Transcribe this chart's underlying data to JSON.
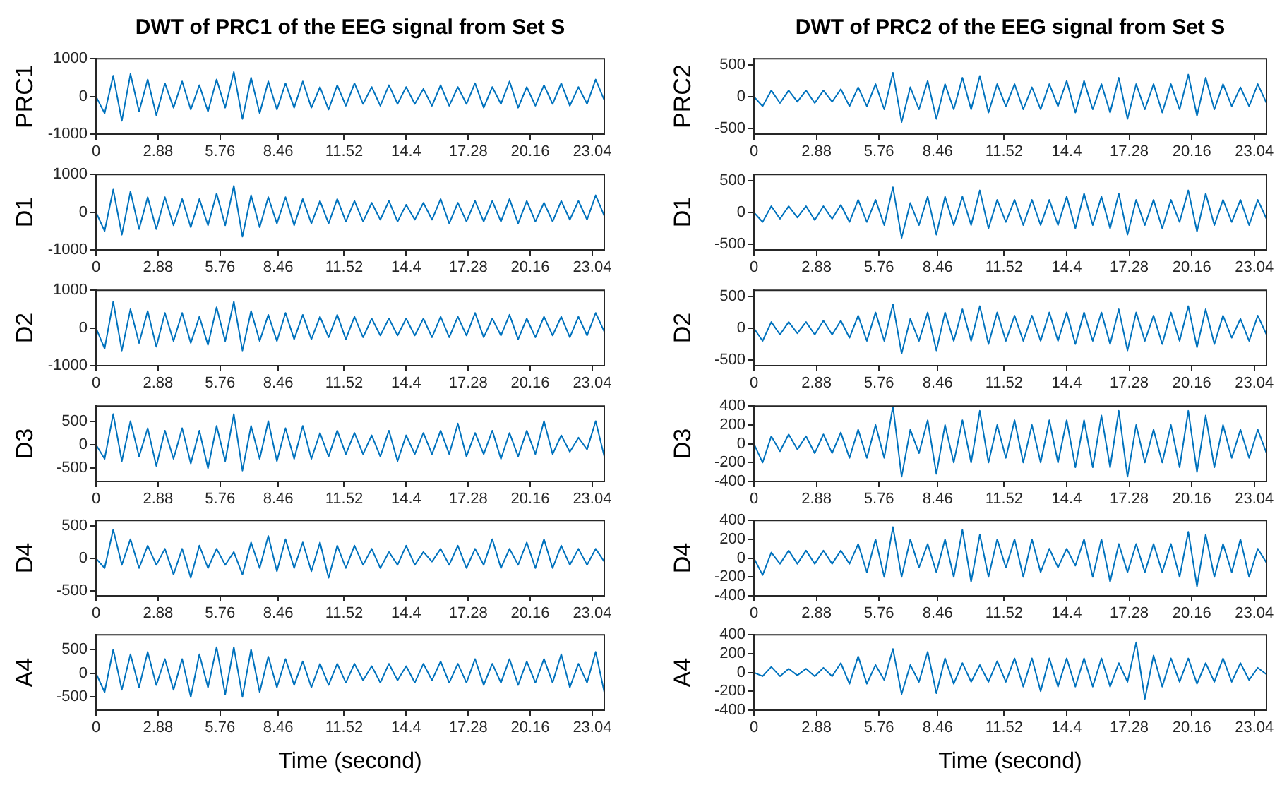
{
  "chart_data": [
    {
      "type": "line",
      "title": "DWT of PRC1 of the EEG signal from Set S",
      "ylabel": "PRC1",
      "color": "#0072bd",
      "xlim": [
        0,
        23.6
      ],
      "ylim": [
        -1000,
        1000
      ],
      "yticks": [
        -1000,
        0,
        1000
      ],
      "xticks": [
        0,
        2.88,
        5.76,
        8.46,
        11.52,
        14.4,
        17.28,
        20.16,
        23.04
      ],
      "grid": false,
      "legend": false,
      "marker": "none",
      "x": [
        0,
        0.4,
        0.8,
        1.2,
        1.6,
        2,
        2.4,
        2.8,
        3.2,
        3.6,
        4,
        4.4,
        4.8,
        5.2,
        5.6,
        6,
        6.4,
        6.8,
        7.2,
        7.6,
        8,
        8.4,
        8.8,
        9.2,
        9.6,
        10,
        10.4,
        10.8,
        11.2,
        11.6,
        12,
        12.4,
        12.8,
        13.2,
        13.6,
        14,
        14.4,
        14.8,
        15.2,
        15.6,
        16,
        16.4,
        16.8,
        17.2,
        17.6,
        18,
        18.4,
        18.8,
        19.2,
        19.6,
        20,
        20.4,
        20.8,
        21.2,
        21.6,
        22,
        22.4,
        22.8,
        23.2,
        23.6
      ],
      "values": [
        0,
        -450,
        550,
        -650,
        600,
        -400,
        450,
        -500,
        350,
        -300,
        400,
        -350,
        300,
        -400,
        450,
        -300,
        650,
        -600,
        500,
        -450,
        400,
        -350,
        350,
        -300,
        400,
        -300,
        250,
        -350,
        300,
        -250,
        350,
        -200,
        250,
        -250,
        300,
        -200,
        250,
        -200,
        200,
        -250,
        300,
        -250,
        250,
        -200,
        350,
        -300,
        250,
        -200,
        400,
        -300,
        250,
        -250,
        300,
        -200,
        350,
        -250,
        250,
        -200,
        450,
        -100
      ]
    },
    {
      "type": "line",
      "ylabel": "D1",
      "color": "#0072bd",
      "xlim": [
        0,
        23.6
      ],
      "ylim": [
        -1000,
        1000
      ],
      "yticks": [
        -1000,
        0,
        1000
      ],
      "xticks": [
        0,
        2.88,
        5.76,
        8.46,
        11.52,
        14.4,
        17.28,
        20.16,
        23.04
      ],
      "grid": false,
      "legend": false,
      "marker": "none",
      "x": [
        0,
        0.4,
        0.8,
        1.2,
        1.6,
        2,
        2.4,
        2.8,
        3.2,
        3.6,
        4,
        4.4,
        4.8,
        5.2,
        5.6,
        6,
        6.4,
        6.8,
        7.2,
        7.6,
        8,
        8.4,
        8.8,
        9.2,
        9.6,
        10,
        10.4,
        10.8,
        11.2,
        11.6,
        12,
        12.4,
        12.8,
        13.2,
        13.6,
        14,
        14.4,
        14.8,
        15.2,
        15.6,
        16,
        16.4,
        16.8,
        17.2,
        17.6,
        18,
        18.4,
        18.8,
        19.2,
        19.6,
        20,
        20.4,
        20.8,
        21.2,
        21.6,
        22,
        22.4,
        22.8,
        23.2,
        23.6
      ],
      "values": [
        0,
        -500,
        600,
        -600,
        550,
        -450,
        400,
        -450,
        400,
        -350,
        350,
        -400,
        350,
        -350,
        500,
        -350,
        700,
        -650,
        450,
        -400,
        400,
        -300,
        400,
        -350,
        350,
        -300,
        300,
        -300,
        350,
        -250,
        300,
        -250,
        250,
        -200,
        300,
        -250,
        200,
        -200,
        250,
        -200,
        350,
        -300,
        250,
        -250,
        300,
        -250,
        300,
        -250,
        350,
        -300,
        300,
        -250,
        250,
        -250,
        300,
        -200,
        300,
        -200,
        450,
        -100
      ]
    },
    {
      "type": "line",
      "ylabel": "D2",
      "color": "#0072bd",
      "xlim": [
        0,
        23.6
      ],
      "ylim": [
        -1000,
        1000
      ],
      "yticks": [
        -1000,
        0,
        1000
      ],
      "xticks": [
        0,
        2.88,
        5.76,
        8.46,
        11.52,
        14.4,
        17.28,
        20.16,
        23.04
      ],
      "grid": false,
      "legend": false,
      "marker": "none",
      "x": [
        0,
        0.4,
        0.8,
        1.2,
        1.6,
        2,
        2.4,
        2.8,
        3.2,
        3.6,
        4,
        4.4,
        4.8,
        5.2,
        5.6,
        6,
        6.4,
        6.8,
        7.2,
        7.6,
        8,
        8.4,
        8.8,
        9.2,
        9.6,
        10,
        10.4,
        10.8,
        11.2,
        11.6,
        12,
        12.4,
        12.8,
        13.2,
        13.6,
        14,
        14.4,
        14.8,
        15.2,
        15.6,
        16,
        16.4,
        16.8,
        17.2,
        17.6,
        18,
        18.4,
        18.8,
        19.2,
        19.6,
        20,
        20.4,
        20.8,
        21.2,
        21.6,
        22,
        22.4,
        22.8,
        23.2,
        23.6
      ],
      "values": [
        0,
        -550,
        700,
        -600,
        500,
        -400,
        450,
        -500,
        400,
        -350,
        400,
        -400,
        300,
        -450,
        550,
        -350,
        700,
        -600,
        450,
        -350,
        350,
        -350,
        400,
        -300,
        350,
        -300,
        300,
        -250,
        350,
        -300,
        300,
        -250,
        250,
        -200,
        250,
        -200,
        250,
        -200,
        250,
        -250,
        300,
        -250,
        300,
        -200,
        400,
        -250,
        250,
        -200,
        350,
        -300,
        250,
        -250,
        300,
        -200,
        300,
        -250,
        300,
        -200,
        400,
        -100
      ]
    },
    {
      "type": "line",
      "ylabel": "D3",
      "color": "#0072bd",
      "xlim": [
        0,
        23.6
      ],
      "ylim": [
        -780,
        820
      ],
      "yticks": [
        -500,
        0,
        500
      ],
      "xticks": [
        0,
        2.88,
        5.76,
        8.46,
        11.52,
        14.4,
        17.28,
        20.16,
        23.04
      ],
      "grid": false,
      "legend": false,
      "marker": "none",
      "x": [
        0,
        0.4,
        0.8,
        1.2,
        1.6,
        2,
        2.4,
        2.8,
        3.2,
        3.6,
        4,
        4.4,
        4.8,
        5.2,
        5.6,
        6,
        6.4,
        6.8,
        7.2,
        7.6,
        8,
        8.4,
        8.8,
        9.2,
        9.6,
        10,
        10.4,
        10.8,
        11.2,
        11.6,
        12,
        12.4,
        12.8,
        13.2,
        13.6,
        14,
        14.4,
        14.8,
        15.2,
        15.6,
        16,
        16.4,
        16.8,
        17.2,
        17.6,
        18,
        18.4,
        18.8,
        19.2,
        19.6,
        20,
        20.4,
        20.8,
        21.2,
        21.6,
        22,
        22.4,
        22.8,
        23.2,
        23.6
      ],
      "values": [
        0,
        -300,
        650,
        -350,
        500,
        -250,
        350,
        -450,
        300,
        -300,
        350,
        -400,
        300,
        -500,
        400,
        -350,
        650,
        -550,
        400,
        -300,
        500,
        -350,
        350,
        -300,
        400,
        -300,
        250,
        -250,
        300,
        -200,
        250,
        -200,
        200,
        -250,
        300,
        -350,
        200,
        -200,
        250,
        -200,
        300,
        -200,
        450,
        -250,
        250,
        -200,
        300,
        -300,
        250,
        -250,
        300,
        -200,
        500,
        -200,
        200,
        -150,
        150,
        -100,
        500,
        -250
      ]
    },
    {
      "type": "line",
      "ylabel": "D4",
      "color": "#0072bd",
      "xlim": [
        0,
        23.6
      ],
      "ylim": [
        -580,
        590
      ],
      "yticks": [
        -500,
        0,
        500
      ],
      "xticks": [
        0,
        2.88,
        5.76,
        8.46,
        11.52,
        14.4,
        17.28,
        20.16,
        23.04
      ],
      "grid": false,
      "legend": false,
      "marker": "none",
      "x": [
        0,
        0.4,
        0.8,
        1.2,
        1.6,
        2,
        2.4,
        2.8,
        3.2,
        3.6,
        4,
        4.4,
        4.8,
        5.2,
        5.6,
        6,
        6.4,
        6.8,
        7.2,
        7.6,
        8,
        8.4,
        8.8,
        9.2,
        9.6,
        10,
        10.4,
        10.8,
        11.2,
        11.6,
        12,
        12.4,
        12.8,
        13.2,
        13.6,
        14,
        14.4,
        14.8,
        15.2,
        15.6,
        16,
        16.4,
        16.8,
        17.2,
        17.6,
        18,
        18.4,
        18.8,
        19.2,
        19.6,
        20,
        20.4,
        20.8,
        21.2,
        21.6,
        22,
        22.4,
        22.8,
        23.2,
        23.6
      ],
      "values": [
        0,
        -150,
        450,
        -100,
        300,
        -150,
        200,
        -100,
        150,
        -250,
        150,
        -300,
        200,
        -150,
        150,
        -100,
        100,
        -250,
        250,
        -150,
        350,
        -200,
        300,
        -150,
        250,
        -200,
        250,
        -300,
        200,
        -150,
        200,
        -100,
        150,
        -150,
        100,
        -100,
        200,
        -100,
        100,
        -50,
        150,
        -100,
        200,
        -150,
        150,
        -100,
        300,
        -150,
        150,
        -100,
        250,
        -150,
        300,
        -150,
        200,
        -100,
        150,
        -100,
        150,
        -50
      ]
    },
    {
      "type": "line",
      "ylabel": "A4",
      "xlabel": "Time (second)",
      "color": "#0072bd",
      "xlim": [
        0,
        23.6
      ],
      "ylim": [
        -780,
        810
      ],
      "yticks": [
        -500,
        0,
        500
      ],
      "xticks": [
        0,
        2.88,
        5.76,
        8.46,
        11.52,
        14.4,
        17.28,
        20.16,
        23.04
      ],
      "grid": false,
      "legend": false,
      "marker": "none",
      "x": [
        0,
        0.4,
        0.8,
        1.2,
        1.6,
        2,
        2.4,
        2.8,
        3.2,
        3.6,
        4,
        4.4,
        4.8,
        5.2,
        5.6,
        6,
        6.4,
        6.8,
        7.2,
        7.6,
        8,
        8.4,
        8.8,
        9.2,
        9.6,
        10,
        10.4,
        10.8,
        11.2,
        11.6,
        12,
        12.4,
        12.8,
        13.2,
        13.6,
        14,
        14.4,
        14.8,
        15.2,
        15.6,
        16,
        16.4,
        16.8,
        17.2,
        17.6,
        18,
        18.4,
        18.8,
        19.2,
        19.6,
        20,
        20.4,
        20.8,
        21.2,
        21.6,
        22,
        22.4,
        22.8,
        23.2,
        23.6
      ],
      "values": [
        0,
        -400,
        500,
        -350,
        400,
        -300,
        450,
        -250,
        300,
        -350,
        300,
        -500,
        400,
        -300,
        550,
        -450,
        550,
        -500,
        500,
        -400,
        350,
        -300,
        300,
        -250,
        250,
        -300,
        200,
        -250,
        200,
        -200,
        200,
        -150,
        150,
        -200,
        200,
        -150,
        150,
        -200,
        200,
        -150,
        250,
        -200,
        200,
        -200,
        300,
        -250,
        200,
        -200,
        300,
        -250,
        250,
        -200,
        300,
        -200,
        400,
        -300,
        200,
        -200,
        450,
        -400
      ]
    },
    {
      "type": "line",
      "title": "DWT of PRC2 of the EEG signal from Set S",
      "ylabel": "PRC2",
      "color": "#0072bd",
      "xlim": [
        0,
        23.6
      ],
      "ylim": [
        -590,
        600
      ],
      "yticks": [
        -500,
        0,
        500
      ],
      "xticks": [
        0,
        2.88,
        5.76,
        8.46,
        11.52,
        14.4,
        17.28,
        20.16,
        23.04
      ],
      "grid": false,
      "legend": false,
      "marker": "none",
      "x": [
        0,
        0.4,
        0.8,
        1.2,
        1.6,
        2,
        2.4,
        2.8,
        3.2,
        3.6,
        4,
        4.4,
        4.8,
        5.2,
        5.6,
        6,
        6.4,
        6.8,
        7.2,
        7.6,
        8,
        8.4,
        8.8,
        9.2,
        9.6,
        10,
        10.4,
        10.8,
        11.2,
        11.6,
        12,
        12.4,
        12.8,
        13.2,
        13.6,
        14,
        14.4,
        14.8,
        15.2,
        15.6,
        16,
        16.4,
        16.8,
        17.2,
        17.6,
        18,
        18.4,
        18.8,
        19.2,
        19.6,
        20,
        20.4,
        20.8,
        21.2,
        21.6,
        22,
        22.4,
        22.8,
        23.2,
        23.6
      ],
      "values": [
        0,
        -150,
        100,
        -100,
        100,
        -80,
        100,
        -100,
        100,
        -80,
        120,
        -150,
        150,
        -150,
        200,
        -200,
        380,
        -400,
        150,
        -200,
        250,
        -350,
        200,
        -200,
        300,
        -200,
        330,
        -250,
        200,
        -150,
        200,
        -200,
        150,
        -200,
        200,
        -150,
        250,
        -250,
        250,
        -200,
        200,
        -250,
        300,
        -350,
        200,
        -200,
        200,
        -250,
        200,
        -200,
        350,
        -300,
        300,
        -200,
        200,
        -150,
        150,
        -150,
        200,
        -100
      ]
    },
    {
      "type": "line",
      "ylabel": "D1",
      "color": "#0072bd",
      "xlim": [
        0,
        23.6
      ],
      "ylim": [
        -590,
        600
      ],
      "yticks": [
        -500,
        0,
        500
      ],
      "xticks": [
        0,
        2.88,
        5.76,
        8.46,
        11.52,
        14.4,
        17.28,
        20.16,
        23.04
      ],
      "grid": false,
      "legend": false,
      "marker": "none",
      "x": [
        0,
        0.4,
        0.8,
        1.2,
        1.6,
        2,
        2.4,
        2.8,
        3.2,
        3.6,
        4,
        4.4,
        4.8,
        5.2,
        5.6,
        6,
        6.4,
        6.8,
        7.2,
        7.6,
        8,
        8.4,
        8.8,
        9.2,
        9.6,
        10,
        10.4,
        10.8,
        11.2,
        11.6,
        12,
        12.4,
        12.8,
        13.2,
        13.6,
        14,
        14.4,
        14.8,
        15.2,
        15.6,
        16,
        16.4,
        16.8,
        17.2,
        17.6,
        18,
        18.4,
        18.8,
        19.2,
        19.6,
        20,
        20.4,
        20.8,
        21.2,
        21.6,
        22,
        22.4,
        22.8,
        23.2,
        23.6
      ],
      "values": [
        0,
        -150,
        100,
        -100,
        100,
        -80,
        100,
        -120,
        100,
        -100,
        120,
        -150,
        200,
        -150,
        200,
        -200,
        400,
        -400,
        150,
        -200,
        250,
        -350,
        250,
        -200,
        250,
        -200,
        350,
        -250,
        200,
        -150,
        200,
        -200,
        200,
        -200,
        200,
        -200,
        250,
        -250,
        300,
        -200,
        250,
        -250,
        300,
        -350,
        200,
        -200,
        200,
        -250,
        200,
        -150,
        350,
        -300,
        300,
        -200,
        200,
        -150,
        200,
        -200,
        200,
        -100
      ]
    },
    {
      "type": "line",
      "ylabel": "D2",
      "color": "#0072bd",
      "xlim": [
        0,
        23.6
      ],
      "ylim": [
        -590,
        600
      ],
      "yticks": [
        -500,
        0,
        500
      ],
      "xticks": [
        0,
        2.88,
        5.76,
        8.46,
        11.52,
        14.4,
        17.28,
        20.16,
        23.04
      ],
      "grid": false,
      "legend": false,
      "marker": "none",
      "x": [
        0,
        0.4,
        0.8,
        1.2,
        1.6,
        2,
        2.4,
        2.8,
        3.2,
        3.6,
        4,
        4.4,
        4.8,
        5.2,
        5.6,
        6,
        6.4,
        6.8,
        7.2,
        7.6,
        8,
        8.4,
        8.8,
        9.2,
        9.6,
        10,
        10.4,
        10.8,
        11.2,
        11.6,
        12,
        12.4,
        12.8,
        13.2,
        13.6,
        14,
        14.4,
        14.8,
        15.2,
        15.6,
        16,
        16.4,
        16.8,
        17.2,
        17.6,
        18,
        18.4,
        18.8,
        19.2,
        19.6,
        20,
        20.4,
        20.8,
        21.2,
        21.6,
        22,
        22.4,
        22.8,
        23.2,
        23.6
      ],
      "values": [
        0,
        -200,
        100,
        -100,
        100,
        -80,
        100,
        -100,
        120,
        -100,
        120,
        -150,
        200,
        -200,
        250,
        -200,
        380,
        -400,
        150,
        -200,
        250,
        -350,
        250,
        -200,
        300,
        -200,
        350,
        -250,
        250,
        -200,
        200,
        -200,
        200,
        -200,
        250,
        -200,
        250,
        -250,
        250,
        -200,
        250,
        -250,
        300,
        -350,
        250,
        -200,
        200,
        -250,
        250,
        -200,
        350,
        -300,
        300,
        -250,
        200,
        -150,
        150,
        -200,
        200,
        -100
      ]
    },
    {
      "type": "line",
      "ylabel": "D3",
      "color": "#0072bd",
      "xlim": [
        0,
        23.6
      ],
      "ylim": [
        -400,
        400
      ],
      "yticks": [
        -400,
        -200,
        0,
        200,
        400
      ],
      "xticks": [
        0,
        2.88,
        5.76,
        8.46,
        11.52,
        14.4,
        17.28,
        20.16,
        23.04
      ],
      "grid": false,
      "legend": false,
      "marker": "none",
      "x": [
        0,
        0.4,
        0.8,
        1.2,
        1.6,
        2,
        2.4,
        2.8,
        3.2,
        3.6,
        4,
        4.4,
        4.8,
        5.2,
        5.6,
        6,
        6.4,
        6.8,
        7.2,
        7.6,
        8,
        8.4,
        8.8,
        9.2,
        9.6,
        10,
        10.4,
        10.8,
        11.2,
        11.6,
        12,
        12.4,
        12.8,
        13.2,
        13.6,
        14,
        14.4,
        14.8,
        15.2,
        15.6,
        16,
        16.4,
        16.8,
        17.2,
        17.6,
        18,
        18.4,
        18.8,
        19.2,
        19.6,
        20,
        20.4,
        20.8,
        21.2,
        21.6,
        22,
        22.4,
        22.8,
        23.2,
        23.6
      ],
      "values": [
        0,
        -200,
        80,
        -80,
        100,
        -60,
        80,
        -100,
        100,
        -100,
        120,
        -150,
        150,
        -150,
        200,
        -150,
        400,
        -350,
        150,
        -100,
        250,
        -320,
        200,
        -200,
        250,
        -200,
        350,
        -200,
        200,
        -150,
        250,
        -200,
        200,
        -200,
        250,
        -200,
        250,
        -250,
        250,
        -250,
        300,
        -250,
        350,
        -350,
        200,
        -200,
        150,
        -200,
        200,
        -250,
        350,
        -300,
        300,
        -250,
        200,
        -150,
        150,
        -150,
        150,
        -100
      ]
    },
    {
      "type": "line",
      "ylabel": "D4",
      "color": "#0072bd",
      "xlim": [
        0,
        23.6
      ],
      "ylim": [
        -400,
        400
      ],
      "yticks": [
        -400,
        -200,
        0,
        200,
        400
      ],
      "xticks": [
        0,
        2.88,
        5.76,
        8.46,
        11.52,
        14.4,
        17.28,
        20.16,
        23.04
      ],
      "grid": false,
      "legend": false,
      "marker": "none",
      "x": [
        0,
        0.4,
        0.8,
        1.2,
        1.6,
        2,
        2.4,
        2.8,
        3.2,
        3.6,
        4,
        4.4,
        4.8,
        5.2,
        5.6,
        6,
        6.4,
        6.8,
        7.2,
        7.6,
        8,
        8.4,
        8.8,
        9.2,
        9.6,
        10,
        10.4,
        10.8,
        11.2,
        11.6,
        12,
        12.4,
        12.8,
        13.2,
        13.6,
        14,
        14.4,
        14.8,
        15.2,
        15.6,
        16,
        16.4,
        16.8,
        17.2,
        17.6,
        18,
        18.4,
        18.8,
        19.2,
        19.6,
        20,
        20.4,
        20.8,
        21.2,
        21.6,
        22,
        22.4,
        22.8,
        23.2,
        23.6
      ],
      "values": [
        0,
        -180,
        60,
        -60,
        80,
        -60,
        80,
        -60,
        80,
        -60,
        80,
        -60,
        150,
        -150,
        200,
        -200,
        330,
        -200,
        200,
        -100,
        150,
        -150,
        200,
        -200,
        300,
        -250,
        250,
        -200,
        200,
        -100,
        200,
        -200,
        200,
        -150,
        100,
        -100,
        100,
        -80,
        200,
        -200,
        200,
        -250,
        150,
        -150,
        150,
        -150,
        150,
        -150,
        150,
        -200,
        280,
        -300,
        250,
        -200,
        150,
        -150,
        200,
        -200,
        100,
        -50
      ]
    },
    {
      "type": "line",
      "ylabel": "A4",
      "xlabel": "Time (second)",
      "color": "#0072bd",
      "xlim": [
        0,
        23.6
      ],
      "ylim": [
        -400,
        400
      ],
      "yticks": [
        -400,
        -200,
        0,
        200,
        400
      ],
      "xticks": [
        0,
        2.88,
        5.76,
        8.46,
        11.52,
        14.4,
        17.28,
        20.16,
        23.04
      ],
      "grid": false,
      "legend": false,
      "marker": "none",
      "x": [
        0,
        0.4,
        0.8,
        1.2,
        1.6,
        2,
        2.4,
        2.8,
        3.2,
        3.6,
        4,
        4.4,
        4.8,
        5.2,
        5.6,
        6,
        6.4,
        6.8,
        7.2,
        7.6,
        8,
        8.4,
        8.8,
        9.2,
        9.6,
        10,
        10.4,
        10.8,
        11.2,
        11.6,
        12,
        12.4,
        12.8,
        13.2,
        13.6,
        14,
        14.4,
        14.8,
        15.2,
        15.6,
        16,
        16.4,
        16.8,
        17.2,
        17.6,
        18,
        18.4,
        18.8,
        19.2,
        19.6,
        20,
        20.4,
        20.8,
        21.2,
        21.6,
        22,
        22.4,
        22.8,
        23.2,
        23.6
      ],
      "values": [
        0,
        -40,
        60,
        -40,
        40,
        -30,
        40,
        -40,
        50,
        -40,
        100,
        -120,
        170,
        -120,
        80,
        -80,
        250,
        -230,
        80,
        -100,
        220,
        -220,
        150,
        -120,
        100,
        -100,
        80,
        -100,
        120,
        -100,
        150,
        -150,
        150,
        -200,
        150,
        -150,
        150,
        -150,
        150,
        -150,
        150,
        -150,
        100,
        -100,
        320,
        -280,
        180,
        -150,
        150,
        -100,
        150,
        -120,
        100,
        -100,
        150,
        -100,
        100,
        -80,
        50,
        -20
      ]
    }
  ]
}
